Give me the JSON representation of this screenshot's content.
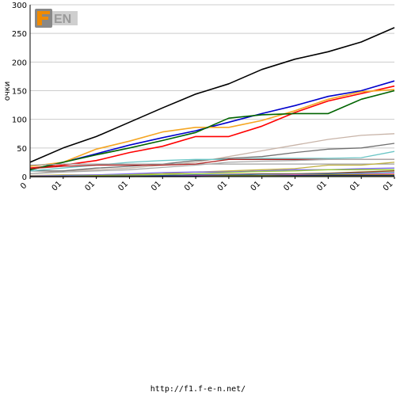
{
  "logo": {
    "text": "F1EN",
    "colors": {
      "box": "#888888",
      "accent": "#f08a00",
      "highlight": "#ffffff"
    }
  },
  "footer": {
    "url": "http://f1.f-e-n.net/"
  },
  "chart_data": {
    "type": "line",
    "ylabel": "очки",
    "xlabel": "",
    "ylim": [
      0,
      300
    ],
    "yticks": [
      0,
      50,
      100,
      150,
      200,
      250,
      300
    ],
    "categories": [
      "0",
      "01",
      "01",
      "01",
      "01",
      "01",
      "01",
      "01",
      "01",
      "01",
      "01",
      "01"
    ],
    "grid": "horizontal",
    "legend": "none",
    "series": [
      {
        "color": "#000000",
        "values": [
          25,
          50,
          70,
          95,
          120,
          144,
          162,
          187,
          205,
          218,
          235,
          260
        ]
      },
      {
        "color": "#0000cc",
        "values": [
          12,
          25,
          40,
          55,
          68,
          80,
          95,
          110,
          124,
          140,
          150,
          167
        ]
      },
      {
        "color": "#ff0000",
        "values": [
          15,
          20,
          28,
          42,
          53,
          70,
          70,
          88,
          112,
          132,
          145,
          158
        ]
      },
      {
        "color": "#f5a623",
        "values": [
          18,
          25,
          48,
          62,
          78,
          86,
          86,
          98,
          115,
          135,
          148,
          152
        ]
      },
      {
        "color": "#006400",
        "values": [
          12,
          25,
          38,
          50,
          63,
          77,
          102,
          108,
          110,
          110,
          135,
          150
        ]
      },
      {
        "color": "#c8b4a8",
        "values": [
          5,
          10,
          12,
          15,
          20,
          25,
          35,
          45,
          55,
          65,
          72,
          75
        ]
      },
      {
        "color": "#707070",
        "values": [
          10,
          10,
          15,
          18,
          22,
          28,
          32,
          35,
          42,
          48,
          50,
          58
        ]
      },
      {
        "color": "#6cc6c6",
        "values": [
          10,
          15,
          20,
          25,
          28,
          30,
          30,
          32,
          32,
          32,
          33,
          44
        ]
      },
      {
        "color": "#a0a0a0",
        "values": [
          20,
          22,
          22,
          22,
          22,
          22,
          22,
          22,
          22,
          22,
          22,
          22
        ]
      },
      {
        "color": "#b22222",
        "values": [
          14,
          18,
          20,
          20,
          20,
          22,
          30,
          30,
          30,
          30,
          30,
          30
        ]
      },
      {
        "color": "#a9a9a9",
        "values": [
          5,
          8,
          10,
          12,
          16,
          20,
          25,
          27,
          28,
          30,
          30,
          30
        ]
      },
      {
        "color": "#c0b040",
        "values": [
          2,
          3,
          3,
          4,
          5,
          8,
          10,
          12,
          14,
          20,
          20,
          25
        ]
      },
      {
        "color": "#7b68ee",
        "values": [
          1,
          2,
          3,
          5,
          7,
          8,
          8,
          10,
          12,
          12,
          14,
          15
        ]
      },
      {
        "color": "#9acd32",
        "values": [
          0,
          1,
          2,
          3,
          4,
          5,
          7,
          9,
          10,
          12,
          12,
          12
        ]
      },
      {
        "color": "#8b4513",
        "values": [
          0,
          0,
          1,
          1,
          2,
          3,
          4,
          5,
          5,
          6,
          8,
          10
        ]
      },
      {
        "color": "#4682b4",
        "values": [
          0,
          1,
          1,
          2,
          2,
          3,
          3,
          4,
          4,
          5,
          6,
          7
        ]
      },
      {
        "color": "#ff69b4",
        "values": [
          0,
          0,
          0,
          1,
          1,
          2,
          2,
          2,
          3,
          3,
          4,
          5
        ]
      },
      {
        "color": "#808000",
        "values": [
          0,
          0,
          1,
          1,
          1,
          1,
          2,
          2,
          2,
          3,
          3,
          3
        ]
      },
      {
        "color": "#00008b",
        "values": [
          0,
          0,
          0,
          0,
          1,
          1,
          1,
          1,
          2,
          2,
          2,
          2
        ]
      },
      {
        "color": "#556b2f",
        "values": [
          0,
          0,
          0,
          0,
          0,
          0,
          1,
          1,
          1,
          1,
          1,
          1
        ]
      }
    ]
  }
}
